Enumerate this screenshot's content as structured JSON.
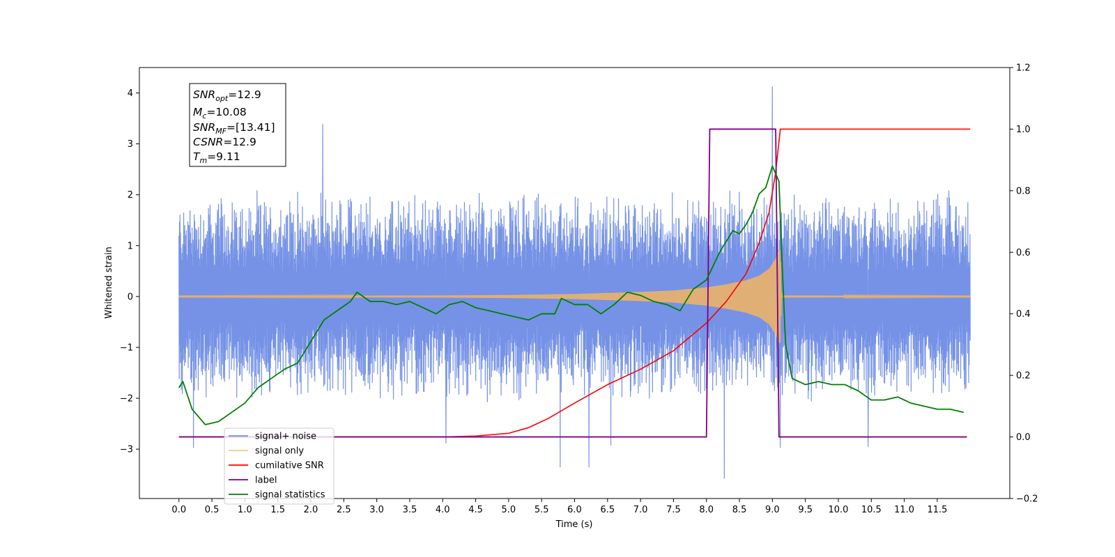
{
  "chart_data": {
    "type": "line",
    "xlabel": "Time (s)",
    "ylabel": "Whitened strain",
    "xlim": [
      -0.6,
      12.6
    ],
    "ylim": [
      -3.97,
      4.5
    ],
    "ylim_right": [
      -0.2,
      1.2
    ],
    "x_ticks": [
      "0.0",
      "0.5",
      "1.0",
      "1.5",
      "2.0",
      "2.5",
      "3.0",
      "3.5",
      "4.0",
      "4.5",
      "5.0",
      "5.5",
      "6.0",
      "6.5",
      "7.0",
      "7.5",
      "8.0",
      "8.5",
      "9.0",
      "9.5",
      "10.0",
      "10.5",
      "11.0",
      "11.5"
    ],
    "y_ticks_left": [
      "−3",
      "−2",
      "−1",
      "0",
      "1",
      "2",
      "3",
      "4"
    ],
    "y_ticks_right": [
      "−0.2",
      "0.0",
      "0.2",
      "0.4",
      "0.6",
      "0.8",
      "1.0",
      "1.2"
    ],
    "grid": false,
    "legend_position": "lower-left",
    "annotation": {
      "lines": [
        {
          "sym": "SNR",
          "sub": "opt",
          "value": "=12.9"
        },
        {
          "sym": "M",
          "sub": "c",
          "value": "=10.08"
        },
        {
          "sym": "SNR",
          "sub": "MF",
          "value": "=[13.41]"
        },
        {
          "sym": "CSNR",
          "sub": "",
          "value": "=12.9"
        },
        {
          "sym": "T",
          "sub": "m",
          "value": "=9.11"
        }
      ]
    },
    "series": [
      {
        "name": "signal+ noise",
        "color": "#7592e6",
        "axis": "left",
        "x_range": [
          0.0,
          12.0
        ],
        "envelope_approx": {
          "low": -2.2,
          "high": 2.3
        },
        "peaks": [
          {
            "x": 9.0,
            "y": 4.12
          },
          {
            "x": 8.27,
            "y": -3.57
          },
          {
            "x": 5.78,
            "y": -3.35
          },
          {
            "x": 6.22,
            "y": -3.35
          },
          {
            "x": 2.18,
            "y": 3.38
          },
          {
            "x": 0.22,
            "y": -2.97
          },
          {
            "x": 9.12,
            "y": -2.97
          },
          {
            "x": 10.45,
            "y": -2.95
          },
          {
            "x": 4.05,
            "y": -2.88
          },
          {
            "x": 6.55,
            "y": -2.92
          }
        ]
      },
      {
        "name": "signal only",
        "color": "#f2b460",
        "axis": "left",
        "x_range": [
          0.0,
          12.0
        ],
        "envelope": {
          "x": [
            0.0,
            2.0,
            4.0,
            5.0,
            6.0,
            7.0,
            7.5,
            8.0,
            8.3,
            8.6,
            8.8,
            8.95,
            9.05,
            9.1,
            9.12,
            9.14,
            12.0
          ],
          "amp": [
            0.01,
            0.015,
            0.02,
            0.03,
            0.05,
            0.09,
            0.12,
            0.18,
            0.24,
            0.32,
            0.41,
            0.55,
            0.75,
            0.93,
            0.9,
            0.02,
            0.01
          ]
        }
      },
      {
        "name": "cumilative SNR",
        "color": "#ff0000",
        "axis": "right",
        "x": [
          0.0,
          4.0,
          4.5,
          5.0,
          5.3,
          5.6,
          6.0,
          6.5,
          7.0,
          7.5,
          8.0,
          8.3,
          8.6,
          8.8,
          8.95,
          9.05,
          9.12,
          12.0
        ],
        "y": [
          0.0,
          0.0,
          0.003,
          0.012,
          0.03,
          0.06,
          0.11,
          0.17,
          0.22,
          0.28,
          0.37,
          0.44,
          0.53,
          0.63,
          0.73,
          0.86,
          1.0,
          1.0
        ]
      },
      {
        "name": "label",
        "color": "#800080",
        "axis": "right",
        "x": [
          0.0,
          8.0,
          8.05,
          9.05,
          9.1,
          11.95
        ],
        "y": [
          0.0,
          0.0,
          1.0,
          1.0,
          0.0,
          0.0
        ]
      },
      {
        "name": "signal statistics",
        "color": "#008000",
        "axis": "right",
        "x": [
          0.0,
          0.06,
          0.2,
          0.4,
          0.6,
          0.8,
          1.0,
          1.2,
          1.4,
          1.6,
          1.8,
          2.0,
          2.2,
          2.4,
          2.6,
          2.7,
          2.9,
          3.1,
          3.3,
          3.5,
          3.7,
          3.9,
          4.1,
          4.3,
          4.5,
          4.7,
          4.9,
          5.1,
          5.3,
          5.5,
          5.7,
          5.8,
          6.0,
          6.2,
          6.4,
          6.6,
          6.8,
          7.0,
          7.2,
          7.4,
          7.6,
          7.8,
          8.0,
          8.2,
          8.4,
          8.5,
          8.6,
          8.7,
          8.8,
          8.9,
          9.0,
          9.1,
          9.15,
          9.2,
          9.3,
          9.5,
          9.7,
          9.9,
          10.1,
          10.3,
          10.5,
          10.7,
          10.9,
          11.1,
          11.3,
          11.5,
          11.7,
          11.9
        ],
        "y": [
          0.16,
          0.18,
          0.09,
          0.04,
          0.05,
          0.08,
          0.11,
          0.16,
          0.19,
          0.22,
          0.24,
          0.31,
          0.38,
          0.41,
          0.44,
          0.47,
          0.44,
          0.44,
          0.43,
          0.44,
          0.42,
          0.4,
          0.43,
          0.44,
          0.42,
          0.41,
          0.4,
          0.39,
          0.38,
          0.4,
          0.4,
          0.45,
          0.43,
          0.43,
          0.4,
          0.43,
          0.47,
          0.46,
          0.44,
          0.43,
          0.41,
          0.48,
          0.51,
          0.6,
          0.67,
          0.66,
          0.69,
          0.73,
          0.79,
          0.81,
          0.88,
          0.83,
          0.55,
          0.3,
          0.19,
          0.17,
          0.18,
          0.17,
          0.17,
          0.15,
          0.12,
          0.12,
          0.13,
          0.11,
          0.1,
          0.09,
          0.09,
          0.08
        ]
      }
    ]
  }
}
